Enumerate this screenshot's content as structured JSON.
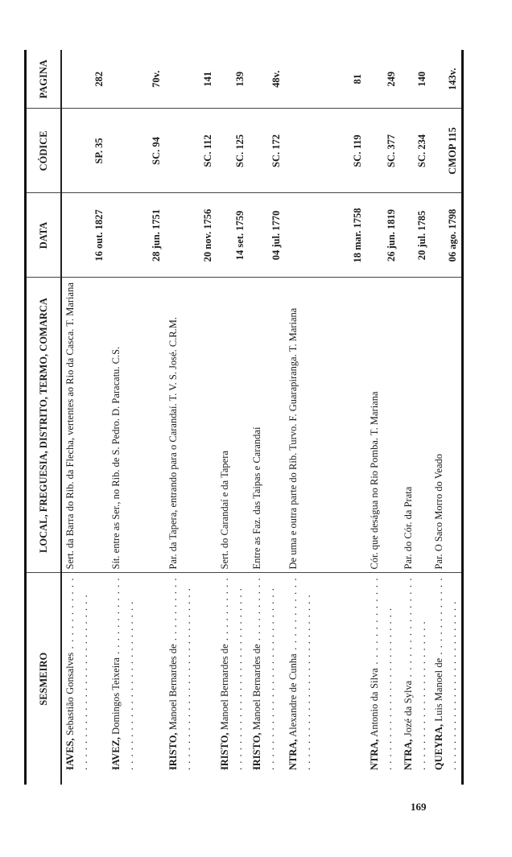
{
  "table": {
    "headers": {
      "sesmeiro": "SESMEIRO",
      "local": "LOCAL, FREGUESIA, DISTRITO, TERMO, COMARCA",
      "data": "DATA",
      "codice": "CÓDICE",
      "pagina": "PAGINA"
    },
    "rows": [
      {
        "surname": "CHAVES,",
        "given": "Sebastião Gonsalves",
        "local": "Sert. da Barra do Rib. da Flecha, vertentes ao Rio da Casca. T. Mariana",
        "data": "16 out. 1827",
        "codice": "SP. 35",
        "pagina": "282"
      },
      {
        "surname": "CHAVEZ,",
        "given": "Domingos Teixeira",
        "local": "Sít. entre as Ser., no Rib. de S. Pedro. D. Paracatu. C.S.",
        "data": "28 jun. 1751",
        "codice": "SC. 94",
        "pagina": "70v."
      },
      {
        "surname": "CHRISTO,",
        "given": "Manoel Bernardes de",
        "local": "Par. da Tapera, entrando para o Carandaí. T. V. S. José. C.R.M.",
        "data": "20 nov. 1756",
        "codice": "SC. 112",
        "pagina": "141"
      },
      {
        "surname": "CHRISTO,",
        "given": "Manoel Bernardes de",
        "local": "Sert. do Carandaí e da Tapera",
        "data": "14 set. 1759",
        "codice": "SC. 125",
        "pagina": "139"
      },
      {
        "surname": "CHRISTO,",
        "given": "Manoel Bernardes de",
        "local": "Entre as Faz. das Taipas e Carandaí",
        "data": "04 jul. 1770",
        "codice": "SC. 172",
        "pagina": "48v."
      },
      {
        "surname": "CINTRA,",
        "given": "Alexandre de Cunha",
        "local": "De uma e outra parte do Rib. Turvo. F. Guarapiranga. T. Mariana",
        "data": "18 mar. 1758",
        "codice": "SC. 119",
        "pagina": "81"
      },
      {
        "surname": "CINTRA,",
        "given": "Antonio da Silva",
        "local": "Cór. que deságua no Rio Pomba. T. Mariana",
        "data": "26 jun. 1819",
        "codice": "SC. 377",
        "pagina": "249"
      },
      {
        "surname": "CINTRA,",
        "given": "Jozé da Sylva",
        "local": "Par. do Cór. da Prata",
        "data": "20 jul. 1785",
        "codice": "SC. 234",
        "pagina": "140"
      },
      {
        "surname": "CIQUEYRA,",
        "given": "Luis Manoel de",
        "local": "Par. O Saco Morro do Veado",
        "data": "06 ago. 1798",
        "codice": "CMOP 115",
        "pagina": "143v."
      }
    ]
  },
  "page_number": "169"
}
